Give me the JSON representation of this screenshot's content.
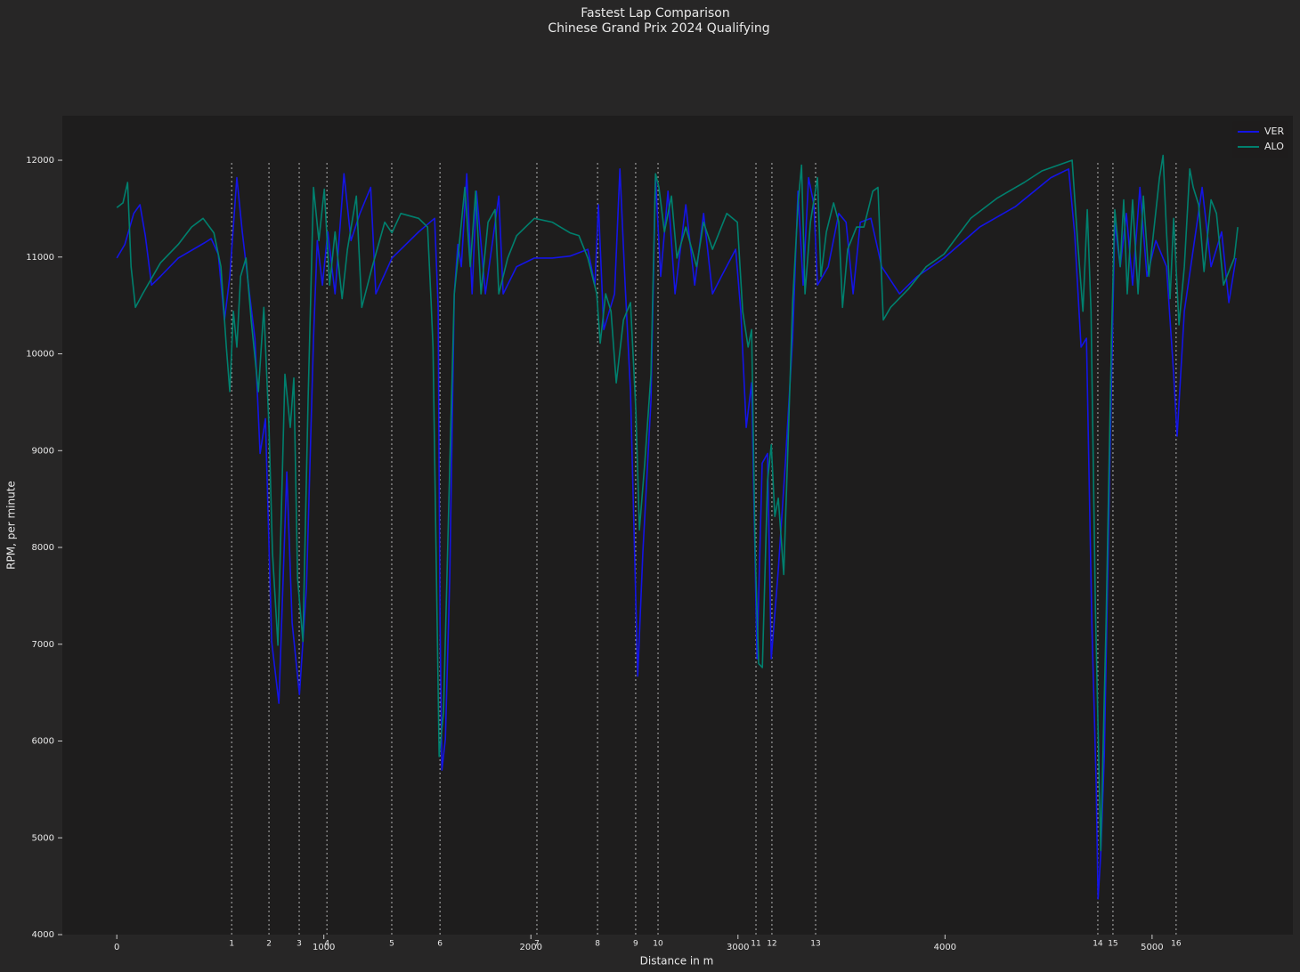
{
  "chart_data": {
    "type": "line",
    "title": "Fastest Lap Comparison",
    "subtitle": "Chinese Grand Prix 2024 Qualifying",
    "x_label": "Distance in m",
    "y_label": "RPM, per minute",
    "xlim": [
      -263,
      5680
    ],
    "ylim": [
      4000,
      12460
    ],
    "xticks": [
      0,
      1000,
      2000,
      3000,
      4000,
      5000
    ],
    "yticks": [
      4000,
      5000,
      6000,
      7000,
      8000,
      9000,
      10000,
      11000,
      12000
    ],
    "legend": "upper right",
    "corners": {
      "labels": [
        "1",
        "2",
        "3",
        "4",
        "5",
        "6",
        "7",
        "8",
        "9",
        "10",
        "11",
        "12",
        "13",
        "14",
        "15",
        "16"
      ],
      "distances": [
        555,
        735,
        881,
        1015,
        1328,
        1561,
        2029,
        2322,
        2506,
        2614,
        3087,
        3164,
        3375,
        4738,
        4811,
        5116
      ]
    },
    "series": [
      {
        "name": "VER",
        "color": "#1414e6",
        "x": [
          0,
          39,
          82,
          112,
          138,
          168,
          211,
          297,
          426,
          456,
          490,
          520,
          546,
          580,
          606,
          641,
          667,
          692,
          718,
          748,
          783,
          821,
          847,
          882,
          916,
          950,
          968,
          993,
          1019,
          1054,
          1097,
          1131,
          1174,
          1226,
          1251,
          1329,
          1458,
          1535,
          1552,
          1561,
          1570,
          1587,
          1608,
          1630,
          1647,
          1664,
          1690,
          1716,
          1737,
          1780,
          1845,
          1866,
          1931,
          2017,
          2103,
          2189,
          2275,
          2309,
          2326,
          2352,
          2404,
          2430,
          2455,
          2481,
          2516,
          2541,
          2580,
          2602,
          2627,
          2662,
          2696,
          2748,
          2791,
          2834,
          2877,
          2920,
          2989,
          3014,
          3040,
          3066,
          3092,
          3117,
          3143,
          3161,
          3195,
          3229,
          3264,
          3290,
          3315,
          3341,
          3367,
          3384,
          3436,
          3487,
          3522,
          3556,
          3591,
          3642,
          3694,
          3780,
          3866,
          3995,
          4167,
          4339,
          4511,
          4597,
          4627,
          4657,
          4683,
          4709,
          4730,
          4739,
          4752,
          4769,
          4795,
          4820,
          4846,
          4876,
          4906,
          4941,
          4975,
          5018,
          5070,
          5104,
          5121,
          5156,
          5199,
          5242,
          5285,
          5336,
          5371,
          5405
        ],
        "values": [
          10990,
          11130,
          11450,
          11540,
          11220,
          10710,
          10800,
          10990,
          11150,
          11190,
          11030,
          10350,
          10800,
          11820,
          11260,
          10620,
          10160,
          8970,
          9330,
          7030,
          6390,
          8780,
          7220,
          6480,
          7590,
          10160,
          11170,
          10710,
          11260,
          10620,
          11860,
          11170,
          11450,
          11720,
          10620,
          10990,
          11260,
          11400,
          10480,
          7220,
          5700,
          6020,
          7680,
          10620,
          11130,
          10900,
          11860,
          10620,
          11680,
          10620,
          11630,
          10620,
          10900,
          10990,
          10990,
          11010,
          11080,
          10710,
          11540,
          10250,
          10620,
          11910,
          10710,
          9610,
          6670,
          7950,
          9520,
          11820,
          10800,
          11680,
          10620,
          11540,
          10710,
          11450,
          10620,
          10800,
          11080,
          10440,
          9240,
          9700,
          6850,
          8870,
          8970,
          6850,
          7770,
          8870,
          10160,
          11680,
          10710,
          11820,
          11540,
          10710,
          10900,
          11450,
          11360,
          10620,
          11360,
          11400,
          10900,
          10620,
          10800,
          10990,
          11310,
          11520,
          11820,
          11910,
          11220,
          10070,
          10160,
          7220,
          5560,
          4370,
          4830,
          5840,
          8780,
          11360,
          10900,
          11450,
          10710,
          11720,
          10800,
          11170,
          10900,
          9790,
          9150,
          10440,
          11080,
          11720,
          10900,
          11260,
          10530,
          10990
        ]
      },
      {
        "name": "ALO",
        "color": "#00806e",
        "x": [
          0,
          30,
          52,
          69,
          90,
          125,
          211,
          297,
          361,
          417,
          469,
          503,
          529,
          546,
          563,
          580,
          598,
          624,
          649,
          684,
          710,
          735,
          752,
          778,
          812,
          838,
          855,
          873,
          899,
          924,
          950,
          976,
          1002,
          1028,
          1054,
          1088,
          1114,
          1157,
          1183,
          1234,
          1294,
          1329,
          1372,
          1458,
          1501,
          1518,
          1527,
          1557,
          1578,
          1604,
          1630,
          1656,
          1681,
          1707,
          1733,
          1759,
          1793,
          1827,
          1845,
          1888,
          1931,
          2017,
          2103,
          2189,
          2232,
          2275,
          2318,
          2335,
          2361,
          2387,
          2412,
          2447,
          2481,
          2507,
          2524,
          2550,
          2580,
          2602,
          2618,
          2645,
          2679,
          2705,
          2748,
          2800,
          2834,
          2877,
          2946,
          2997,
          3023,
          3049,
          3066,
          3083,
          3100,
          3118,
          3143,
          3161,
          3178,
          3195,
          3221,
          3264,
          3290,
          3307,
          3324,
          3350,
          3384,
          3401,
          3427,
          3462,
          3487,
          3505,
          3530,
          3573,
          3608,
          3651,
          3676,
          3702,
          3737,
          3823,
          3909,
          3995,
          4124,
          4253,
          4382,
          4468,
          4614,
          4640,
          4666,
          4687,
          4705,
          4726,
          4752,
          4778,
          4804,
          4820,
          4846,
          4863,
          4880,
          4906,
          4932,
          4958,
          4984,
          5010,
          5036,
          5053,
          5070,
          5087,
          5104,
          5130,
          5156,
          5182,
          5199,
          5225,
          5251,
          5285,
          5311,
          5345,
          5371,
          5397,
          5414
        ],
        "values": [
          11510,
          11560,
          11770,
          10900,
          10480,
          10620,
          10940,
          11130,
          11310,
          11400,
          11250,
          10900,
          10070,
          9610,
          10440,
          10070,
          10800,
          10990,
          10350,
          9610,
          10480,
          9240,
          7950,
          6990,
          9790,
          9240,
          9750,
          7680,
          7030,
          9520,
          11720,
          11170,
          11700,
          10710,
          11260,
          10570,
          11080,
          11630,
          10480,
          10900,
          11360,
          11250,
          11450,
          11400,
          11310,
          10530,
          10070,
          5840,
          6300,
          8510,
          10620,
          11170,
          11720,
          10900,
          11680,
          10620,
          11360,
          11490,
          10620,
          10990,
          11220,
          11400,
          11360,
          11250,
          11220,
          10990,
          10620,
          10110,
          10620,
          10440,
          9700,
          10350,
          10530,
          9420,
          8180,
          8870,
          9790,
          11860,
          11720,
          11260,
          11630,
          10990,
          11310,
          10900,
          11360,
          11080,
          11450,
          11360,
          10440,
          10070,
          10250,
          7950,
          6800,
          6760,
          8690,
          9060,
          8320,
          8510,
          7720,
          10530,
          11540,
          11950,
          10620,
          11360,
          11820,
          10800,
          11260,
          11560,
          11360,
          10480,
          11080,
          11310,
          11310,
          11680,
          11720,
          10350,
          10480,
          10670,
          10900,
          11030,
          11400,
          11610,
          11770,
          11890,
          12000,
          11170,
          10440,
          11490,
          10440,
          7400,
          4870,
          7220,
          10160,
          11490,
          10900,
          11590,
          10620,
          11590,
          10620,
          11630,
          10800,
          11310,
          11820,
          12050,
          11260,
          10570,
          11400,
          10300,
          10900,
          11910,
          11720,
          11540,
          10850,
          11590,
          11450,
          10710,
          10850,
          10990,
          11310
        ]
      }
    ]
  }
}
